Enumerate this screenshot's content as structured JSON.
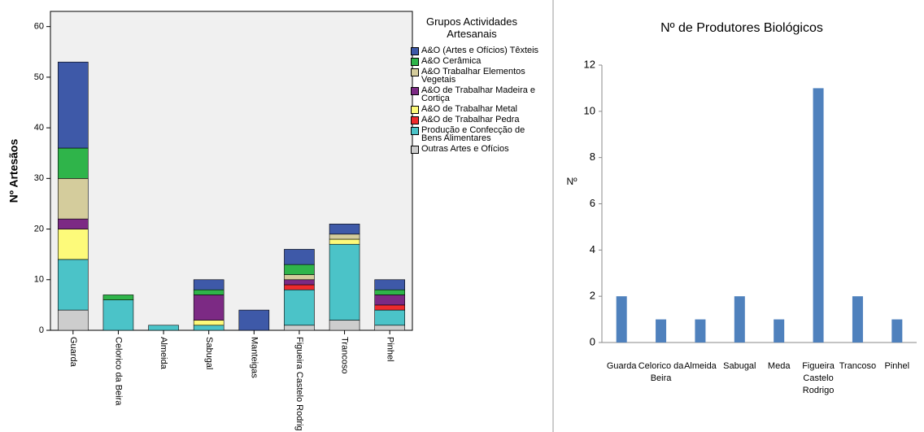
{
  "chart_data": [
    {
      "type": "stacked_bar",
      "ylabel": "Nº Artesãos",
      "legend_title": "Grupos Actividades Artesanais",
      "categories": [
        "Guarda",
        "Celorico da Beira",
        "Almeida",
        "Sabugal",
        "Manteigas",
        "Figueira Castelo Rodrig",
        "Trancoso",
        "Pinhel"
      ],
      "ylim": [
        0,
        63
      ],
      "yticks": [
        0,
        10,
        20,
        30,
        40,
        50,
        60
      ],
      "series": [
        {
          "name": "A&O (Artes e Ofícios) Têxteis",
          "color": "#3e59a8",
          "values": [
            17,
            0,
            0,
            2,
            4,
            3,
            2,
            2
          ]
        },
        {
          "name": "A&O Cerâmica",
          "color": "#2fb44a",
          "values": [
            6,
            1,
            0,
            1,
            0,
            2,
            0,
            1
          ]
        },
        {
          "name": "A&O Trabalhar Elementos Vegetais",
          "color": "#d4cc9c",
          "values": [
            8,
            0,
            0,
            0,
            0,
            1,
            1,
            0
          ]
        },
        {
          "name": "A&O de Trabalhar Madeira e Cortiça",
          "color": "#7c2a84",
          "values": [
            2,
            0,
            0,
            5,
            0,
            1,
            0,
            2
          ]
        },
        {
          "name": "A&O de Trabalhar Metal",
          "color": "#fdfa7a",
          "values": [
            6,
            0,
            0,
            1,
            0,
            0,
            1,
            0
          ]
        },
        {
          "name": "A&O de Trabalhar Pedra",
          "color": "#ee2a2c",
          "values": [
            0,
            0,
            0,
            0,
            0,
            1,
            0,
            1
          ]
        },
        {
          "name": "Produção e Confecção de Bens Alimentares",
          "color": "#4bc3c8",
          "values": [
            10,
            6,
            1,
            1,
            0,
            7,
            15,
            3
          ]
        },
        {
          "name": "Outras Artes e Ofícios",
          "color": "#cdcdcd",
          "values": [
            4,
            0,
            0,
            0,
            0,
            1,
            2,
            1
          ]
        }
      ]
    },
    {
      "type": "bar",
      "title": "Nº de Produtores Biológicos",
      "ylabel": "Nº",
      "categories": [
        "Guarda",
        "Celorico da Beira",
        "Almeida",
        "Sabugal",
        "Meda",
        "Figueira Castelo Rodrigo",
        "Trancoso",
        "Pinhel"
      ],
      "values": [
        2,
        1,
        1,
        2,
        1,
        11,
        2,
        1
      ],
      "color": "#4f81bd",
      "ylim": [
        0,
        12
      ],
      "yticks": [
        0,
        2,
        4,
        6,
        8,
        10,
        12
      ]
    }
  ]
}
